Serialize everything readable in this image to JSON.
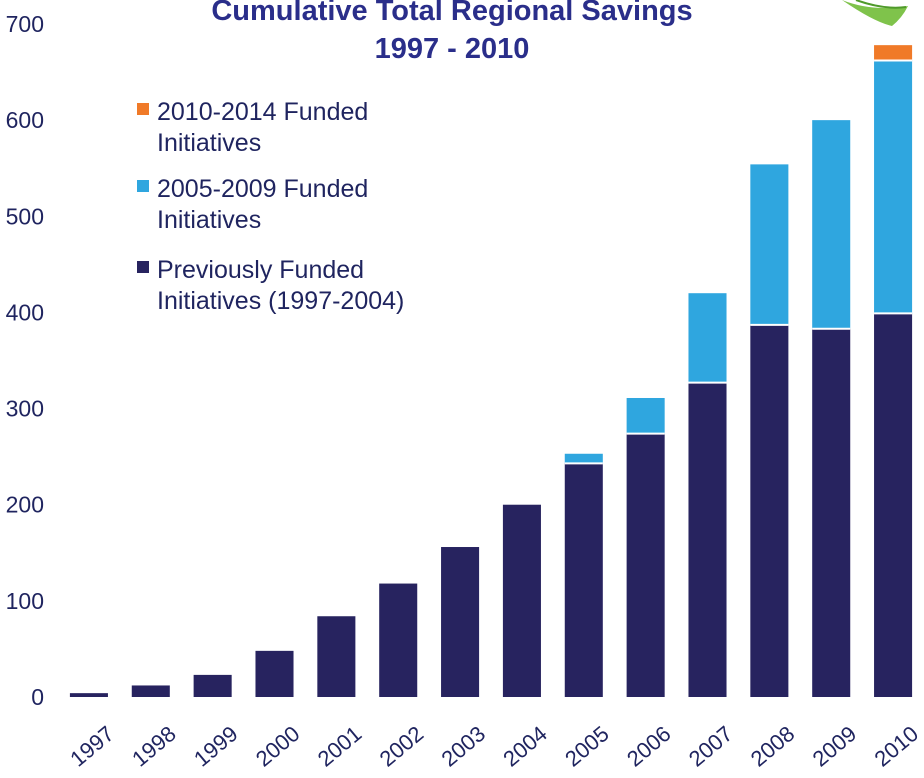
{
  "chart_data": {
    "type": "bar",
    "title": "Cumulative Total Regional Savings",
    "subtitle": "1997 - 2010",
    "xlabel": "",
    "ylabel": "",
    "ylim": [
      0,
      700
    ],
    "y_ticks": [
      "0",
      "100",
      "200",
      "300",
      "400",
      "500",
      "600",
      "700"
    ],
    "categories": [
      "1997",
      "1998",
      "1999",
      "2000",
      "2001",
      "2002",
      "2003",
      "2004",
      "2005",
      "2006",
      "2007",
      "2008",
      "2009",
      "2010"
    ],
    "series": [
      {
        "name": "Previously Funded Initiatives (1997-2004)",
        "color": "#27235f",
        "values": [
          4,
          12,
          23,
          48,
          84,
          118,
          156,
          200,
          243,
          274,
          327,
          387,
          383,
          399
        ]
      },
      {
        "name": "2005-2009 Funded Initiatives",
        "color": "#2fa6df",
        "values": [
          0,
          0,
          0,
          0,
          0,
          0,
          0,
          0,
          10,
          37,
          93,
          167,
          217,
          263
        ]
      },
      {
        "name": "2010-2014 Funded Initiatives",
        "color": "#f07a28",
        "values": [
          0,
          0,
          0,
          0,
          0,
          0,
          0,
          0,
          0,
          0,
          0,
          0,
          0,
          16
        ]
      }
    ],
    "legend": {
      "placement": "top-left",
      "order": [
        "2010-2014 Funded Initiatives",
        "2005-2009 Funded Initiatives",
        "Previously Funded Initiatives (1997-2004)"
      ],
      "items": [
        {
          "color": "#f07a28",
          "lines": [
            "2010-2014 Funded",
            "Initiatives"
          ]
        },
        {
          "color": "#2fa6df",
          "lines": [
            "2005-2009 Funded",
            "Initiatives"
          ]
        },
        {
          "color": "#27235f",
          "lines": [
            "Previously Funded",
            "Initiatives (1997-2004)"
          ]
        }
      ]
    },
    "grid": false
  }
}
